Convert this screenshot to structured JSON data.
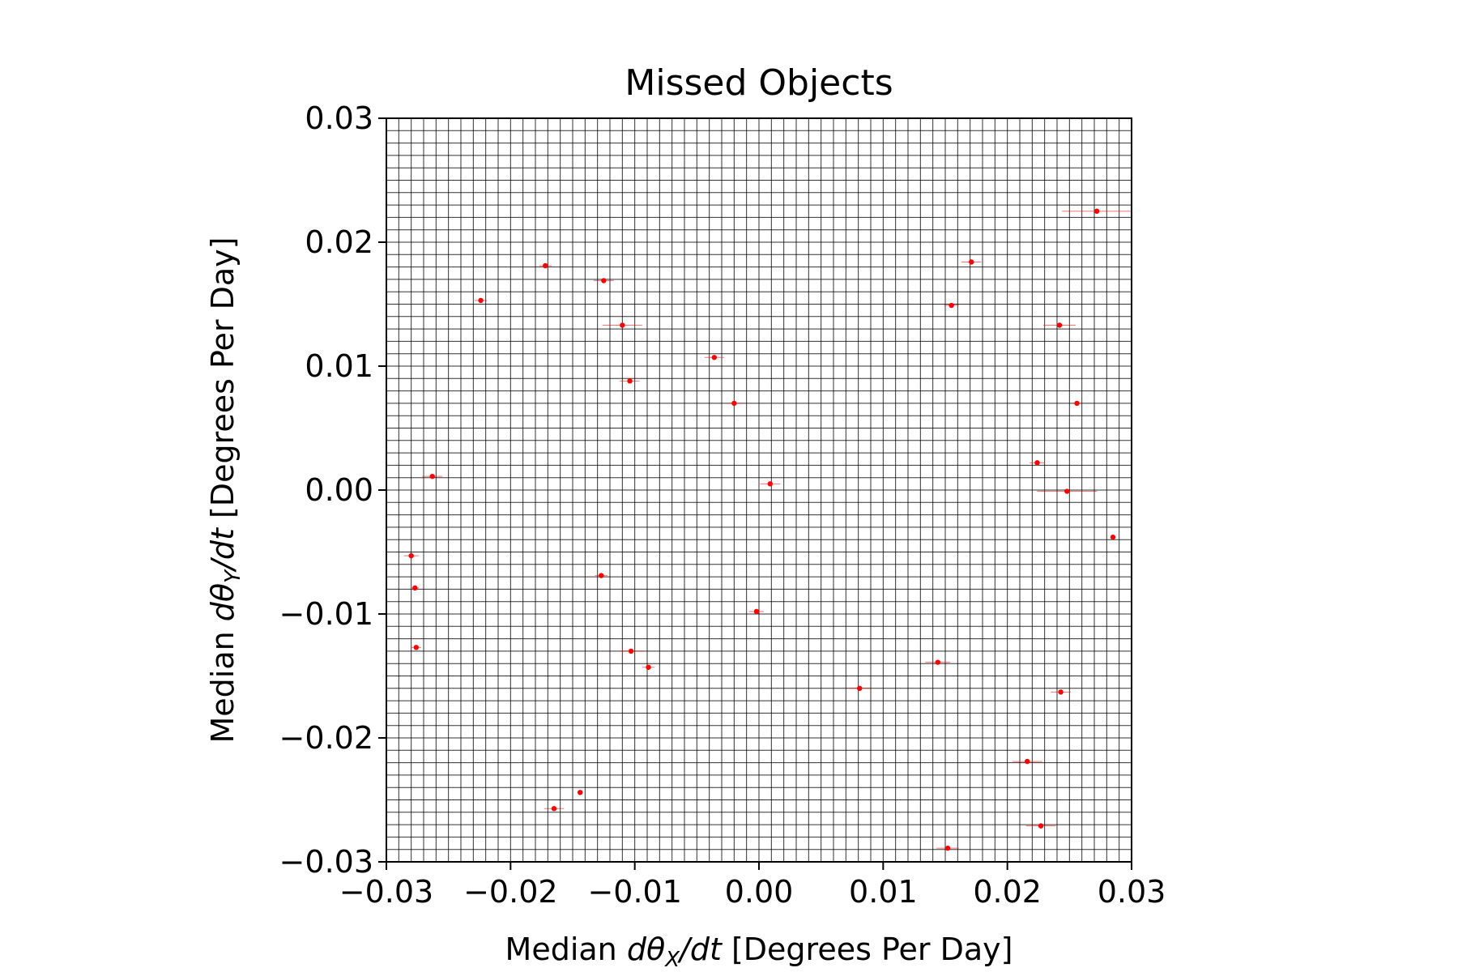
{
  "chart_data": {
    "type": "scatter",
    "title": "Missed Objects",
    "xlabel": {
      "prefix": "Median ",
      "math": "dθ",
      "sub": "X",
      "suffix_math": "/dt",
      "suffix": " [Degrees Per Day]"
    },
    "ylabel": {
      "prefix": "Median ",
      "math": "dθ",
      "sub": "Y",
      "suffix_math": "/dt",
      "suffix": " [Degrees Per Day]"
    },
    "xlim": [
      -0.03,
      0.03
    ],
    "ylim": [
      -0.03,
      0.03
    ],
    "xticks": [
      -0.03,
      -0.02,
      -0.01,
      0.0,
      0.01,
      0.02,
      0.03
    ],
    "yticks": [
      -0.03,
      -0.02,
      -0.01,
      0.0,
      0.01,
      0.02,
      0.03
    ],
    "xtick_labels": [
      "−0.03",
      "−0.02",
      "−0.01",
      "0.00",
      "0.01",
      "0.02",
      "0.03"
    ],
    "ytick_labels": [
      "−0.03",
      "−0.02",
      "−0.01",
      "0.00",
      "0.01",
      "0.02",
      "0.03"
    ],
    "grid": true,
    "grid_step": 0.001,
    "point_color": "#ff0000",
    "points": [
      {
        "x": 0.0272,
        "y": 0.0225,
        "xerr": 0.0028
      },
      {
        "x": -0.0172,
        "y": 0.0181,
        "xerr": 0.0005
      },
      {
        "x": 0.0171,
        "y": 0.0184,
        "xerr": 0.0008
      },
      {
        "x": -0.0125,
        "y": 0.0169,
        "xerr": 0.0008
      },
      {
        "x": -0.0224,
        "y": 0.0153,
        "xerr": 0.0005
      },
      {
        "x": 0.0155,
        "y": 0.0149,
        "xerr": 0.0006
      },
      {
        "x": -0.011,
        "y": 0.0133,
        "xerr": 0.0016
      },
      {
        "x": 0.0242,
        "y": 0.0133,
        "xerr": 0.0013
      },
      {
        "x": -0.0036,
        "y": 0.0107,
        "xerr": 0.0008
      },
      {
        "x": -0.0104,
        "y": 0.0088,
        "xerr": 0.0008
      },
      {
        "x": -0.002,
        "y": 0.007,
        "xerr": 0.0006
      },
      {
        "x": 0.0256,
        "y": 0.007,
        "xerr": 0.0004
      },
      {
        "x": 0.0224,
        "y": 0.0022,
        "xerr": 0.0006
      },
      {
        "x": -0.0263,
        "y": 0.0011,
        "xerr": 0.0008
      },
      {
        "x": 0.0009,
        "y": 0.0005,
        "xerr": 0.0008
      },
      {
        "x": 0.0248,
        "y": -0.0001,
        "xerr": 0.0024
      },
      {
        "x": 0.0285,
        "y": -0.0038,
        "xerr": 0.0002
      },
      {
        "x": -0.028,
        "y": -0.0053,
        "xerr": 0.0006
      },
      {
        "x": -0.0127,
        "y": -0.0069,
        "xerr": 0.0005
      },
      {
        "x": -0.0277,
        "y": -0.0079,
        "xerr": 0.0003
      },
      {
        "x": -0.0002,
        "y": -0.0098,
        "xerr": 0.0006
      },
      {
        "x": -0.0276,
        "y": -0.0127,
        "xerr": 0.0004
      },
      {
        "x": -0.0103,
        "y": -0.013,
        "xerr": 0.001
      },
      {
        "x": 0.0144,
        "y": -0.0139,
        "xerr": 0.001
      },
      {
        "x": -0.0089,
        "y": -0.0143,
        "xerr": 0.0005
      },
      {
        "x": 0.0081,
        "y": -0.016,
        "xerr": 0.0008
      },
      {
        "x": 0.0243,
        "y": -0.0163,
        "xerr": 0.0008
      },
      {
        "x": 0.0216,
        "y": -0.0219,
        "xerr": 0.0012
      },
      {
        "x": -0.0144,
        "y": -0.0244,
        "xerr": 0.0002
      },
      {
        "x": -0.0165,
        "y": -0.0257,
        "xerr": 0.0008
      },
      {
        "x": 0.0227,
        "y": -0.0271,
        "xerr": 0.0012
      },
      {
        "x": 0.0152,
        "y": -0.0289,
        "xerr": 0.0009
      }
    ]
  }
}
